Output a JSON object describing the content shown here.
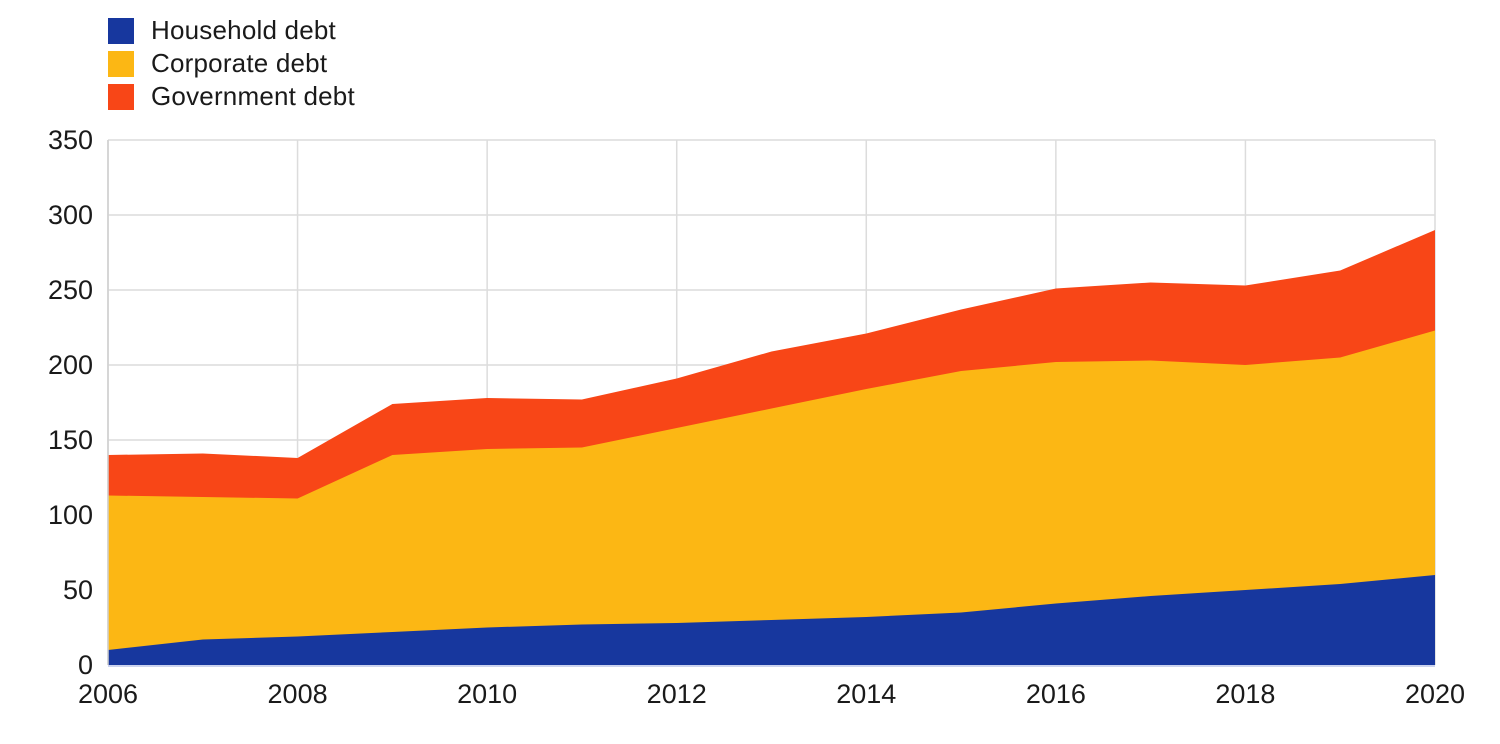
{
  "chart_data": {
    "type": "area",
    "stacked": true,
    "title": "",
    "x": [
      2006,
      2007,
      2008,
      2009,
      2010,
      2011,
      2012,
      2013,
      2014,
      2015,
      2016,
      2017,
      2018,
      2019,
      2020
    ],
    "series": [
      {
        "name": "Household debt",
        "color": "#17379e",
        "values": [
          10,
          17,
          19,
          22,
          25,
          27,
          28,
          30,
          32,
          35,
          41,
          46,
          50,
          54,
          60
        ]
      },
      {
        "name": "Corporate debt",
        "color": "#fcb714",
        "values": [
          103,
          95,
          92,
          118,
          119,
          118,
          130,
          141,
          152,
          161,
          161,
          157,
          150,
          151,
          163
        ]
      },
      {
        "name": "Government debt",
        "color": "#f84617",
        "values": [
          27,
          29,
          27,
          34,
          34,
          32,
          33,
          38,
          37,
          41,
          49,
          52,
          53,
          58,
          67
        ]
      }
    ],
    "ylim": [
      0,
      350
    ],
    "ytick_labels": [
      "0",
      "50",
      "100",
      "150",
      "200",
      "250",
      "300",
      "350"
    ],
    "xtick_labels": [
      "2006",
      "2008",
      "2010",
      "2012",
      "2014",
      "2016",
      "2018",
      "2020"
    ],
    "grid": true,
    "legend_position": "top-left"
  },
  "legend": {
    "items": [
      {
        "label": "Household debt"
      },
      {
        "label": "Corporate debt"
      },
      {
        "label": "Government debt"
      }
    ]
  }
}
